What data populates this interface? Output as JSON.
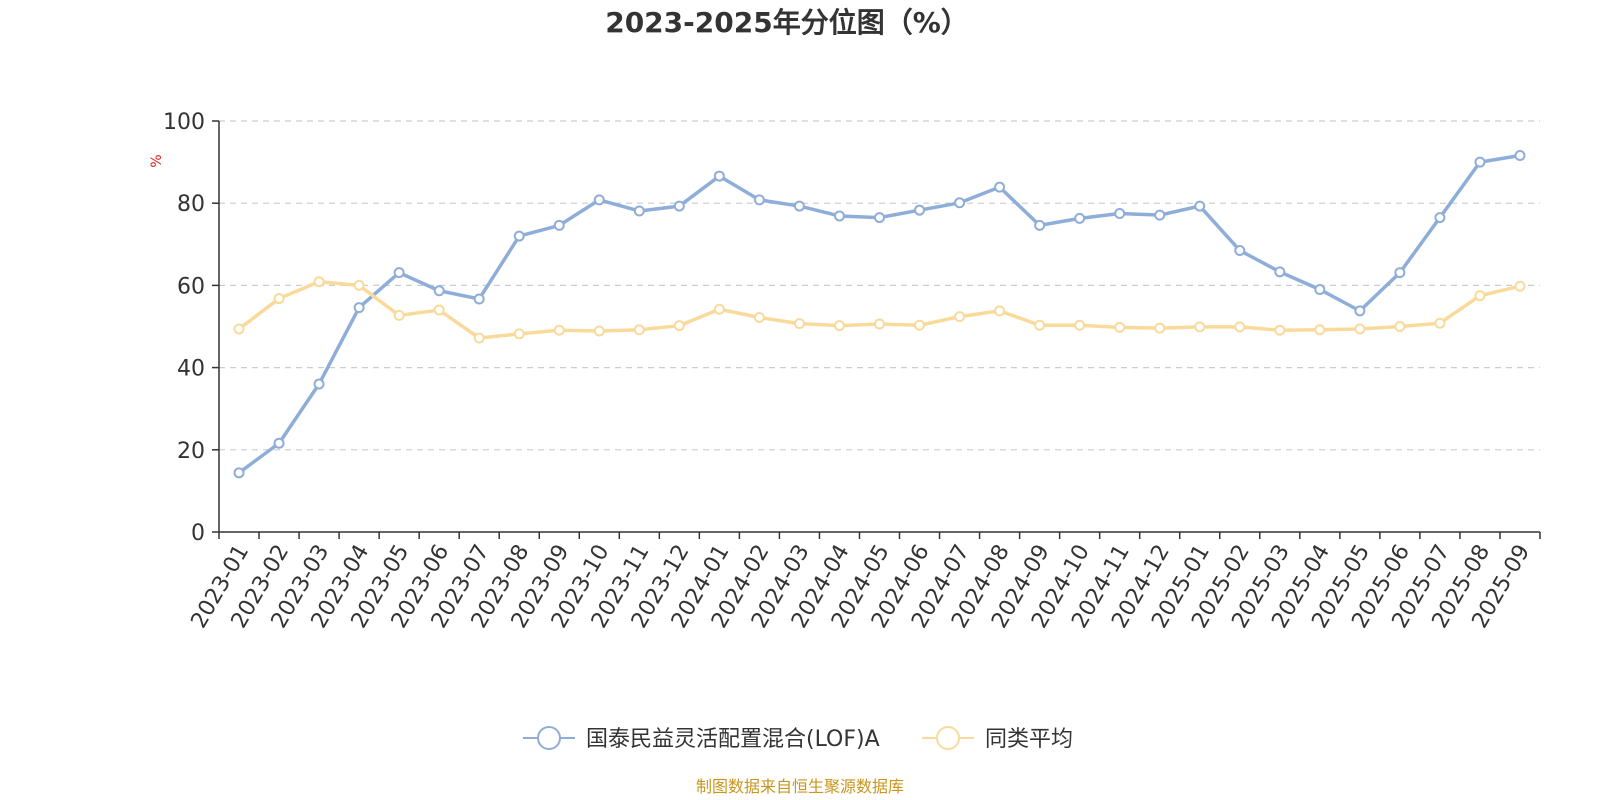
{
  "chart_data": {
    "type": "line",
    "title": "2023-2025年分位图（%）",
    "ylabel": "%",
    "ylim": [
      0,
      100
    ],
    "yticks": [
      "0",
      "20",
      "40",
      "60",
      "80",
      "100"
    ],
    "grid": true,
    "legend_position": "bottom",
    "categories": [
      "2023-01",
      "2023-02",
      "2023-03",
      "2023-04",
      "2023-05",
      "2023-06",
      "2023-07",
      "2023-08",
      "2023-09",
      "2023-10",
      "2023-11",
      "2023-12",
      "2024-01",
      "2024-02",
      "2024-03",
      "2024-04",
      "2024-05",
      "2024-06",
      "2024-07",
      "2024-08",
      "2024-09",
      "2024-10",
      "2024-11",
      "2024-12",
      "2025-01",
      "2025-02",
      "2025-03",
      "2025-04",
      "2025-05",
      "2025-06",
      "2025-07",
      "2025-08",
      "2025-09"
    ],
    "series": [
      {
        "name": "国泰民益灵活配置混合(LOF)A",
        "color": "#8eadd8",
        "values": [
          14.4,
          21.6,
          36.0,
          54.6,
          63.1,
          58.7,
          56.7,
          72.0,
          74.6,
          80.8,
          78.1,
          79.3,
          86.6,
          80.8,
          79.3,
          76.9,
          76.5,
          78.3,
          80.1,
          83.9,
          74.6,
          76.3,
          77.5,
          77.1,
          79.3,
          68.5,
          63.3,
          59.0,
          53.8,
          63.1,
          76.5,
          90.0,
          91.6
        ]
      },
      {
        "name": "同类平均",
        "color": "#f9da9a",
        "values": [
          49.4,
          56.8,
          60.9,
          60.0,
          52.7,
          54.0,
          47.2,
          48.2,
          49.1,
          48.9,
          49.2,
          50.2,
          54.2,
          52.2,
          50.7,
          50.2,
          50.6,
          50.3,
          52.4,
          53.8,
          50.3,
          50.3,
          49.8,
          49.6,
          49.9,
          49.9,
          49.1,
          49.2,
          49.4,
          50.0,
          50.8,
          57.5,
          59.8
        ]
      }
    ]
  },
  "footer": {
    "source_text": "制图数据来自恒生聚源数据库"
  },
  "colors": {
    "unit_label": "#e02020",
    "source_text": "#c8961e",
    "grid": "#cccccc",
    "axis": "#333333"
  }
}
